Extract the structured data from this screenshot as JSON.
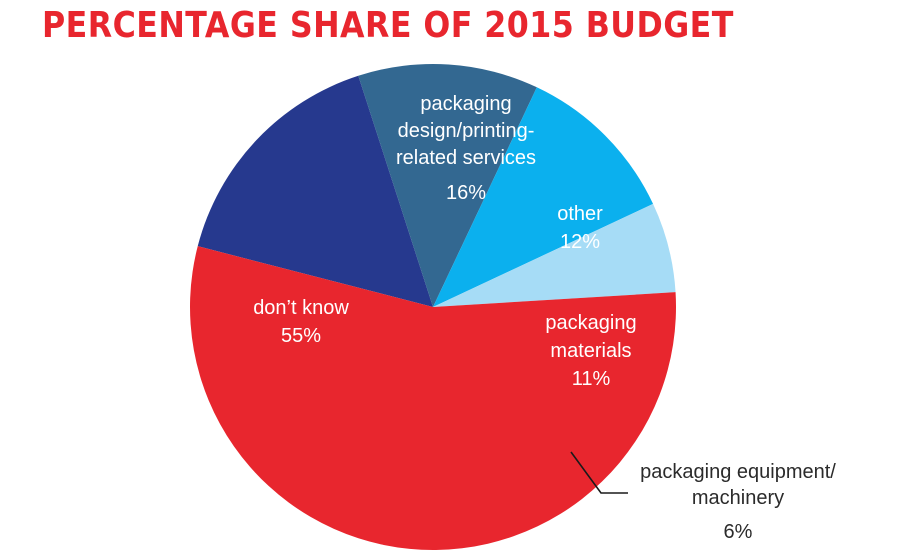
{
  "title": "PERCENTAGE SHARE OF 2015 BUDGET",
  "chart_data": {
    "type": "pie",
    "title": "PERCENTAGE SHARE OF 2015 BUDGET",
    "slices": [
      {
        "lines": [
          "packaging",
          "design/printing-",
          "related services"
        ],
        "value_label": "16%",
        "value": 16,
        "color": "#26398e"
      },
      {
        "lines": [
          "other"
        ],
        "value_label": "12%",
        "value": 12,
        "color": "#336891"
      },
      {
        "lines": [
          "packaging",
          "materials"
        ],
        "value_label": "11%",
        "value": 11,
        "color": "#0bb0ee"
      },
      {
        "lines": [
          "packaging equipment/",
          "machinery"
        ],
        "value_label": "6%",
        "value": 6,
        "color": "#a6dcf6"
      },
      {
        "lines": [
          "don’t know"
        ],
        "value_label": "55%",
        "value": 55,
        "color": "#e8262e"
      }
    ]
  }
}
